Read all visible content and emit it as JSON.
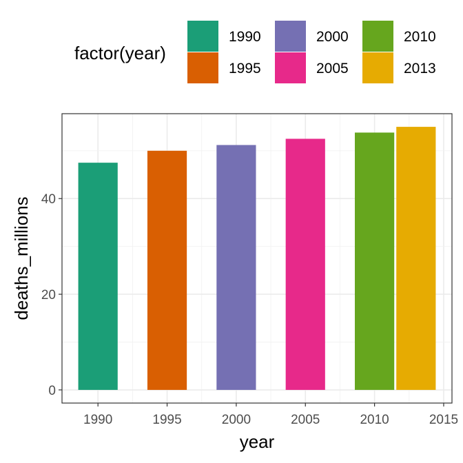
{
  "chart_data": {
    "type": "bar",
    "xlabel": "year",
    "ylabel": "deaths_millions",
    "x": [
      1990,
      1995,
      2000,
      2005,
      2010,
      2013
    ],
    "values": [
      47.5,
      50.0,
      51.2,
      52.5,
      53.8,
      55.0
    ],
    "xlim": [
      1987.4,
      2015.6
    ],
    "ylim": [
      -2.75,
      57.75
    ],
    "xticks": [
      "1990",
      "1995",
      "2000",
      "2005",
      "2010",
      "2015"
    ],
    "yticks": [
      "0",
      "20",
      "40"
    ],
    "legend": {
      "title": "factor(year)",
      "position": "top",
      "entries": [
        {
          "label": "1990",
          "color": "#1b9e77"
        },
        {
          "label": "1995",
          "color": "#d95f02"
        },
        {
          "label": "2000",
          "color": "#7570b3"
        },
        {
          "label": "2005",
          "color": "#e7298a"
        },
        {
          "label": "2010",
          "color": "#66a61e"
        },
        {
          "label": "2013",
          "color": "#e6ab02"
        }
      ]
    },
    "grid": true,
    "colors": [
      "#1b9e77",
      "#d95f02",
      "#7570b3",
      "#e7298a",
      "#66a61e",
      "#e6ab02"
    ]
  }
}
